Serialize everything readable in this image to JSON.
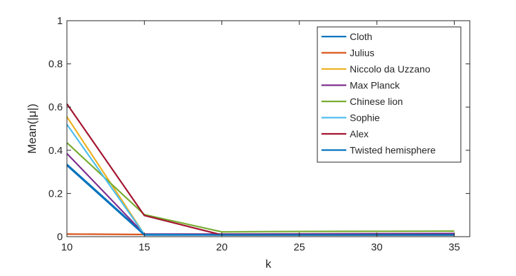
{
  "chart_data": {
    "type": "line",
    "title": "",
    "xlabel": "k",
    "ylabel": "Mean(|μ|)",
    "x": [
      10,
      15,
      20,
      25,
      30,
      35
    ],
    "xlim": [
      10,
      36
    ],
    "ylim": [
      0,
      1
    ],
    "xticks": [
      10,
      15,
      20,
      25,
      30,
      35
    ],
    "yticks": [
      0,
      0.2,
      0.4,
      0.6,
      0.8,
      1
    ],
    "xtick_labels": [
      "10",
      "15",
      "20",
      "25",
      "30",
      "35"
    ],
    "ytick_labels": [
      "0",
      "0.2",
      "0.4",
      "0.6",
      "0.8",
      "1"
    ],
    "grid": false,
    "legend_position": "top-right",
    "series": [
      {
        "name": "Cloth",
        "color": "#0072BD",
        "values": [
          0.335,
          0.012,
          0.01,
          0.01,
          0.01,
          0.01
        ]
      },
      {
        "name": "Julius",
        "color": "#D95319",
        "values": [
          0.012,
          0.01,
          0.008,
          0.008,
          0.008,
          0.008
        ]
      },
      {
        "name": "Niccolo da Uzzano",
        "color": "#EDB120",
        "values": [
          0.555,
          0.01,
          0.008,
          0.008,
          0.008,
          0.008
        ]
      },
      {
        "name": "Max Planck",
        "color": "#7E2F8E",
        "values": [
          0.385,
          0.012,
          0.012,
          0.013,
          0.014,
          0.015
        ]
      },
      {
        "name": "Chinese lion",
        "color": "#77AC30",
        "values": [
          0.435,
          0.102,
          0.022,
          0.024,
          0.025,
          0.026
        ]
      },
      {
        "name": "Sophie",
        "color": "#4DBEEE",
        "values": [
          0.52,
          0.01,
          0.008,
          0.008,
          0.008,
          0.008
        ]
      },
      {
        "name": "Alex",
        "color": "#A2142F",
        "values": [
          0.615,
          0.098,
          0.008,
          0.008,
          0.008,
          0.008
        ]
      },
      {
        "name": "Twisted hemisphere",
        "color": "#0072BD",
        "values": [
          0.33,
          0.008,
          0.008,
          0.008,
          0.008,
          0.008
        ]
      }
    ]
  }
}
